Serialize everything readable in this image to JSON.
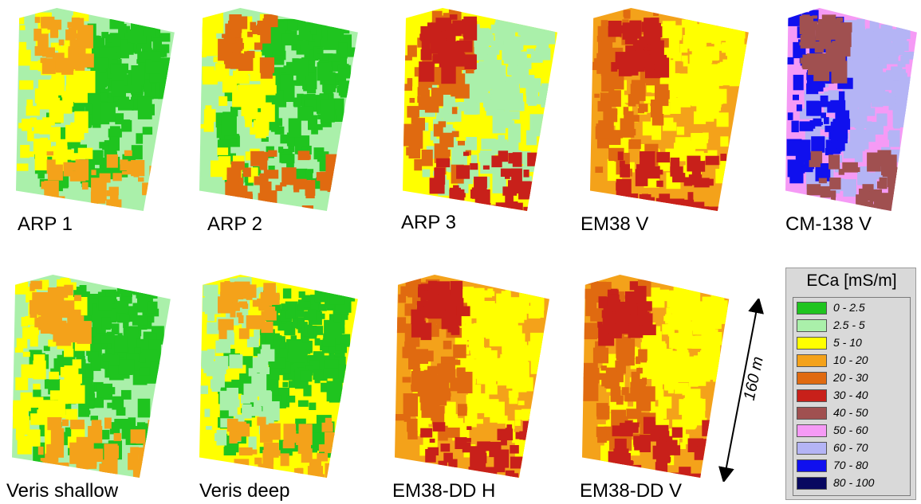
{
  "legend": {
    "title": "ECa [mS/m]",
    "classes": [
      {
        "label": "0 - 2.5",
        "color": "#1fc41f"
      },
      {
        "label": "2.5 - 5",
        "color": "#aaf0aa"
      },
      {
        "label": "5 - 10",
        "color": "#ffff00"
      },
      {
        "label": "10 - 20",
        "color": "#f4a21a"
      },
      {
        "label": "20 - 30",
        "color": "#e06a10"
      },
      {
        "label": "30 - 40",
        "color": "#c8201a"
      },
      {
        "label": "40 - 50",
        "color": "#a05050"
      },
      {
        "label": "50 - 60",
        "color": "#f59af5"
      },
      {
        "label": "60 - 70",
        "color": "#b4b4f5"
      },
      {
        "label": "70 - 80",
        "color": "#1010ee"
      },
      {
        "label": "80 - 100",
        "color": "#080860"
      }
    ]
  },
  "scale_bar": {
    "label": "160 m"
  },
  "maps": [
    {
      "id": "arp-1",
      "label": "ARP 1",
      "base": "#aaf0aa",
      "dominant": "#1fc41f",
      "accent": "#ffff00",
      "extra": "#f4a21a"
    },
    {
      "id": "arp-2",
      "label": "ARP 2",
      "base": "#aaf0aa",
      "dominant": "#1fc41f",
      "accent": "#ffff00",
      "extra": "#e06a10"
    },
    {
      "id": "arp-3",
      "label": "ARP 3",
      "base": "#ffff00",
      "dominant": "#aaf0aa",
      "accent": "#e06a10",
      "extra": "#c8201a"
    },
    {
      "id": "em38-v",
      "label": "EM38 V",
      "base": "#f4a21a",
      "dominant": "#ffff00",
      "accent": "#e06a10",
      "extra": "#c8201a"
    },
    {
      "id": "cm-138-v",
      "label": "CM-138 V",
      "base": "#f59af5",
      "dominant": "#b4b4f5",
      "accent": "#1010ee",
      "extra": "#a05050"
    },
    {
      "id": "veris-shallow",
      "label": "Veris shallow",
      "base": "#aaf0aa",
      "dominant": "#1fc41f",
      "accent": "#ffff00",
      "extra": "#f4a21a"
    },
    {
      "id": "veris-deep",
      "label": "Veris deep",
      "base": "#ffff00",
      "dominant": "#1fc41f",
      "accent": "#aaf0aa",
      "extra": "#f4a21a"
    },
    {
      "id": "em38-dd-h",
      "label": "EM38-DD H",
      "base": "#f4a21a",
      "dominant": "#ffff00",
      "accent": "#e06a10",
      "extra": "#c8201a"
    },
    {
      "id": "em38-dd-v",
      "label": "EM38-DD V",
      "base": "#f4a21a",
      "dominant": "#ffff00",
      "accent": "#e06a10",
      "extra": "#c8201a"
    }
  ]
}
